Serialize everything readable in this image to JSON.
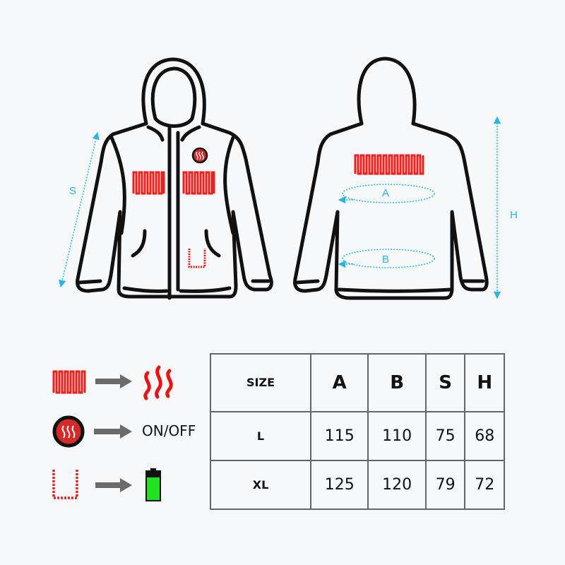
{
  "measure_labels": {
    "A": "A",
    "B": "B",
    "S": "S",
    "H": "H"
  },
  "legend": [
    {
      "icon": "heating-pad-icon",
      "result_icon": "heat-waves-icon"
    },
    {
      "icon": "power-button-icon",
      "result_text": "ON/OFF"
    },
    {
      "icon": "usb-port-icon",
      "result_icon": "battery-icon"
    }
  ],
  "table": {
    "headers": [
      "SIZE",
      "A",
      "B",
      "S",
      "H"
    ],
    "rows": [
      [
        "L",
        "115",
        "110",
        "75",
        "68"
      ],
      [
        "XL",
        "125",
        "120",
        "79",
        "72"
      ]
    ]
  },
  "colors": {
    "heating": "#e8201e",
    "measure": "#29b5e3",
    "battery": "#22e022",
    "arrow": "#6b6b6b"
  }
}
